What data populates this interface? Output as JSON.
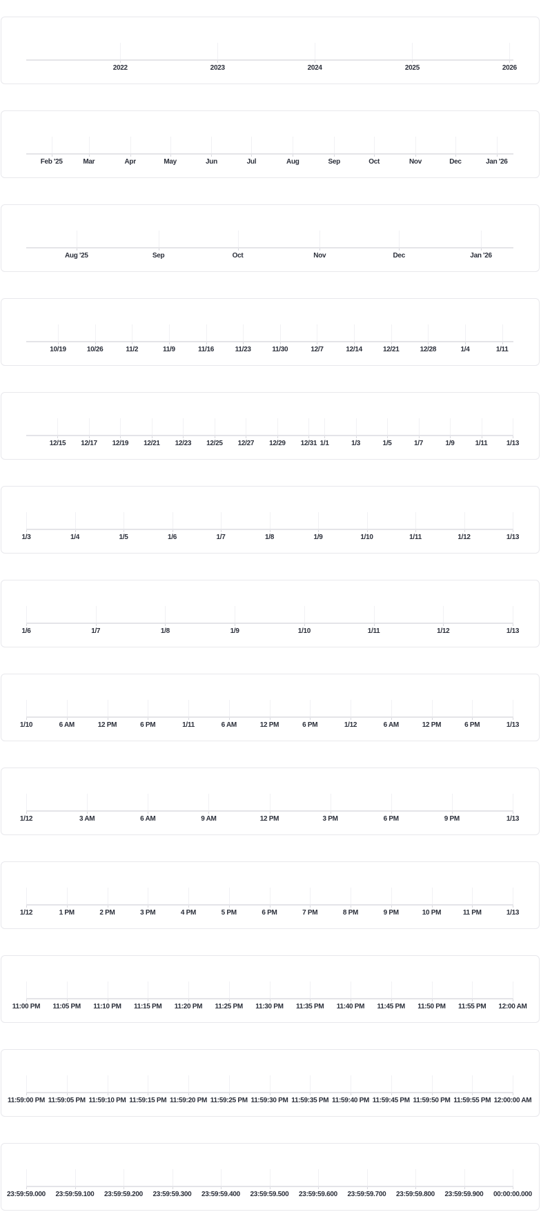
{
  "chart_data": [
    {
      "type": "timeline-axis",
      "domain": [
        "2021-01-13T00:00:00",
        "2026-01-13T00:00:00"
      ],
      "grid": true,
      "ticks": [
        {
          "t": "2022-01-01T00:00:00",
          "label": "2022"
        },
        {
          "t": "2023-01-01T00:00:00",
          "label": "2023"
        },
        {
          "t": "2024-01-01T00:00:00",
          "label": "2024"
        },
        {
          "t": "2025-01-01T00:00:00",
          "label": "2025"
        },
        {
          "t": "2026-01-01T00:00:00",
          "label": "2026"
        }
      ]
    },
    {
      "type": "timeline-axis",
      "domain": [
        "2025-01-13T00:00:00",
        "2026-01-13T00:00:00"
      ],
      "grid": true,
      "ticks": [
        {
          "t": "2025-02-01T00:00:00",
          "label": "Feb '25"
        },
        {
          "t": "2025-03-01T00:00:00",
          "label": "Mar"
        },
        {
          "t": "2025-04-01T00:00:00",
          "label": "Apr"
        },
        {
          "t": "2025-05-01T00:00:00",
          "label": "May"
        },
        {
          "t": "2025-06-01T00:00:00",
          "label": "Jun"
        },
        {
          "t": "2025-07-01T00:00:00",
          "label": "Jul"
        },
        {
          "t": "2025-08-01T00:00:00",
          "label": "Aug"
        },
        {
          "t": "2025-09-01T00:00:00",
          "label": "Sep"
        },
        {
          "t": "2025-10-01T00:00:00",
          "label": "Oct"
        },
        {
          "t": "2025-11-01T00:00:00",
          "label": "Nov"
        },
        {
          "t": "2025-12-01T00:00:00",
          "label": "Dec"
        },
        {
          "t": "2026-01-01T00:00:00",
          "label": "Jan '26"
        }
      ]
    },
    {
      "type": "timeline-axis",
      "domain": [
        "2025-07-13T00:00:00",
        "2026-01-13T00:00:00"
      ],
      "grid": true,
      "ticks": [
        {
          "t": "2025-08-01T00:00:00",
          "label": "Aug '25"
        },
        {
          "t": "2025-09-01T00:00:00",
          "label": "Sep"
        },
        {
          "t": "2025-10-01T00:00:00",
          "label": "Oct"
        },
        {
          "t": "2025-11-01T00:00:00",
          "label": "Nov"
        },
        {
          "t": "2025-12-01T00:00:00",
          "label": "Dec"
        },
        {
          "t": "2026-01-01T00:00:00",
          "label": "Jan '26"
        }
      ]
    },
    {
      "type": "timeline-axis",
      "domain": [
        "2025-10-13T00:00:00",
        "2026-01-13T00:00:00"
      ],
      "grid": true,
      "ticks": [
        {
          "t": "2025-10-19T00:00:00",
          "label": "10/19"
        },
        {
          "t": "2025-10-26T00:00:00",
          "label": "10/26"
        },
        {
          "t": "2025-11-02T00:00:00",
          "label": "11/2"
        },
        {
          "t": "2025-11-09T00:00:00",
          "label": "11/9"
        },
        {
          "t": "2025-11-16T00:00:00",
          "label": "11/16"
        },
        {
          "t": "2025-11-23T00:00:00",
          "label": "11/23"
        },
        {
          "t": "2025-11-30T00:00:00",
          "label": "11/30"
        },
        {
          "t": "2025-12-07T00:00:00",
          "label": "12/7"
        },
        {
          "t": "2025-12-14T00:00:00",
          "label": "12/14"
        },
        {
          "t": "2025-12-21T00:00:00",
          "label": "12/21"
        },
        {
          "t": "2025-12-28T00:00:00",
          "label": "12/28"
        },
        {
          "t": "2026-01-04T00:00:00",
          "label": "1/4"
        },
        {
          "t": "2026-01-11T00:00:00",
          "label": "1/11"
        }
      ]
    },
    {
      "type": "timeline-axis",
      "domain": [
        "2025-12-13T00:00:00",
        "2026-01-13T00:00:00"
      ],
      "grid": true,
      "ticks": [
        {
          "t": "2025-12-15T00:00:00",
          "label": "12/15"
        },
        {
          "t": "2025-12-17T00:00:00",
          "label": "12/17"
        },
        {
          "t": "2025-12-19T00:00:00",
          "label": "12/19"
        },
        {
          "t": "2025-12-21T00:00:00",
          "label": "12/21"
        },
        {
          "t": "2025-12-23T00:00:00",
          "label": "12/23"
        },
        {
          "t": "2025-12-25T00:00:00",
          "label": "12/25"
        },
        {
          "t": "2025-12-27T00:00:00",
          "label": "12/27"
        },
        {
          "t": "2025-12-29T00:00:00",
          "label": "12/29"
        },
        {
          "t": "2025-12-31T00:00:00",
          "label": "12/31"
        },
        {
          "t": "2026-01-01T00:00:00",
          "label": "1/1"
        },
        {
          "t": "2026-01-03T00:00:00",
          "label": "1/3"
        },
        {
          "t": "2026-01-05T00:00:00",
          "label": "1/5"
        },
        {
          "t": "2026-01-07T00:00:00",
          "label": "1/7"
        },
        {
          "t": "2026-01-09T00:00:00",
          "label": "1/9"
        },
        {
          "t": "2026-01-11T00:00:00",
          "label": "1/11"
        },
        {
          "t": "2026-01-13T00:00:00",
          "label": "1/13"
        }
      ]
    },
    {
      "type": "timeline-axis",
      "domain": [
        "2026-01-03T00:00:00",
        "2026-01-13T00:00:00"
      ],
      "grid": true,
      "ticks": [
        {
          "t": "2026-01-03T00:00:00",
          "label": "1/3"
        },
        {
          "t": "2026-01-04T00:00:00",
          "label": "1/4"
        },
        {
          "t": "2026-01-05T00:00:00",
          "label": "1/5"
        },
        {
          "t": "2026-01-06T00:00:00",
          "label": "1/6"
        },
        {
          "t": "2026-01-07T00:00:00",
          "label": "1/7"
        },
        {
          "t": "2026-01-08T00:00:00",
          "label": "1/8"
        },
        {
          "t": "2026-01-09T00:00:00",
          "label": "1/9"
        },
        {
          "t": "2026-01-10T00:00:00",
          "label": "1/10"
        },
        {
          "t": "2026-01-11T00:00:00",
          "label": "1/11"
        },
        {
          "t": "2026-01-12T00:00:00",
          "label": "1/12"
        },
        {
          "t": "2026-01-13T00:00:00",
          "label": "1/13"
        }
      ]
    },
    {
      "type": "timeline-axis",
      "domain": [
        "2026-01-06T00:00:00",
        "2026-01-13T00:00:00"
      ],
      "grid": true,
      "ticks": [
        {
          "t": "2026-01-06T00:00:00",
          "label": "1/6"
        },
        {
          "t": "2026-01-07T00:00:00",
          "label": "1/7"
        },
        {
          "t": "2026-01-08T00:00:00",
          "label": "1/8"
        },
        {
          "t": "2026-01-09T00:00:00",
          "label": "1/9"
        },
        {
          "t": "2026-01-10T00:00:00",
          "label": "1/10"
        },
        {
          "t": "2026-01-11T00:00:00",
          "label": "1/11"
        },
        {
          "t": "2026-01-12T00:00:00",
          "label": "1/12"
        },
        {
          "t": "2026-01-13T00:00:00",
          "label": "1/13"
        }
      ]
    },
    {
      "type": "timeline-axis",
      "domain": [
        "2026-01-10T00:00:00",
        "2026-01-13T00:00:00"
      ],
      "grid": true,
      "ticks": [
        {
          "t": "2026-01-10T00:00:00",
          "label": "1/10"
        },
        {
          "t": "2026-01-10T06:00:00",
          "label": "6 AM"
        },
        {
          "t": "2026-01-10T12:00:00",
          "label": "12 PM"
        },
        {
          "t": "2026-01-10T18:00:00",
          "label": "6 PM"
        },
        {
          "t": "2026-01-11T00:00:00",
          "label": "1/11"
        },
        {
          "t": "2026-01-11T06:00:00",
          "label": "6 AM"
        },
        {
          "t": "2026-01-11T12:00:00",
          "label": "12 PM"
        },
        {
          "t": "2026-01-11T18:00:00",
          "label": "6 PM"
        },
        {
          "t": "2026-01-12T00:00:00",
          "label": "1/12"
        },
        {
          "t": "2026-01-12T06:00:00",
          "label": "6 AM"
        },
        {
          "t": "2026-01-12T12:00:00",
          "label": "12 PM"
        },
        {
          "t": "2026-01-12T18:00:00",
          "label": "6 PM"
        },
        {
          "t": "2026-01-13T00:00:00",
          "label": "1/13"
        }
      ]
    },
    {
      "type": "timeline-axis",
      "domain": [
        "2026-01-12T00:00:00",
        "2026-01-13T00:00:00"
      ],
      "grid": true,
      "ticks": [
        {
          "t": "2026-01-12T00:00:00",
          "label": "1/12"
        },
        {
          "t": "2026-01-12T03:00:00",
          "label": "3 AM"
        },
        {
          "t": "2026-01-12T06:00:00",
          "label": "6 AM"
        },
        {
          "t": "2026-01-12T09:00:00",
          "label": "9 AM"
        },
        {
          "t": "2026-01-12T12:00:00",
          "label": "12 PM"
        },
        {
          "t": "2026-01-12T15:00:00",
          "label": "3 PM"
        },
        {
          "t": "2026-01-12T18:00:00",
          "label": "6 PM"
        },
        {
          "t": "2026-01-12T21:00:00",
          "label": "9 PM"
        },
        {
          "t": "2026-01-13T00:00:00",
          "label": "1/13"
        }
      ]
    },
    {
      "type": "timeline-axis",
      "domain": [
        "2026-01-12T12:00:00",
        "2026-01-13T00:00:00"
      ],
      "grid": true,
      "ticks": [
        {
          "t": "2026-01-12T12:00:00",
          "label": "1/12"
        },
        {
          "t": "2026-01-12T13:00:00",
          "label": "1 PM"
        },
        {
          "t": "2026-01-12T14:00:00",
          "label": "2 PM"
        },
        {
          "t": "2026-01-12T15:00:00",
          "label": "3 PM"
        },
        {
          "t": "2026-01-12T16:00:00",
          "label": "4 PM"
        },
        {
          "t": "2026-01-12T17:00:00",
          "label": "5 PM"
        },
        {
          "t": "2026-01-12T18:00:00",
          "label": "6 PM"
        },
        {
          "t": "2026-01-12T19:00:00",
          "label": "7 PM"
        },
        {
          "t": "2026-01-12T20:00:00",
          "label": "8 PM"
        },
        {
          "t": "2026-01-12T21:00:00",
          "label": "9 PM"
        },
        {
          "t": "2026-01-12T22:00:00",
          "label": "10 PM"
        },
        {
          "t": "2026-01-12T23:00:00",
          "label": "11 PM"
        },
        {
          "t": "2026-01-13T00:00:00",
          "label": "1/13"
        }
      ]
    },
    {
      "type": "timeline-axis",
      "domain": [
        "2026-01-12T23:00:00",
        "2026-01-13T00:00:00"
      ],
      "grid": true,
      "ticks": [
        {
          "t": "2026-01-12T23:00:00",
          "label": "11:00 PM"
        },
        {
          "t": "2026-01-12T23:05:00",
          "label": "11:05 PM"
        },
        {
          "t": "2026-01-12T23:10:00",
          "label": "11:10 PM"
        },
        {
          "t": "2026-01-12T23:15:00",
          "label": "11:15 PM"
        },
        {
          "t": "2026-01-12T23:20:00",
          "label": "11:20 PM"
        },
        {
          "t": "2026-01-12T23:25:00",
          "label": "11:25 PM"
        },
        {
          "t": "2026-01-12T23:30:00",
          "label": "11:30 PM"
        },
        {
          "t": "2026-01-12T23:35:00",
          "label": "11:35 PM"
        },
        {
          "t": "2026-01-12T23:40:00",
          "label": "11:40 PM"
        },
        {
          "t": "2026-01-12T23:45:00",
          "label": "11:45 PM"
        },
        {
          "t": "2026-01-12T23:50:00",
          "label": "11:50 PM"
        },
        {
          "t": "2026-01-12T23:55:00",
          "label": "11:55 PM"
        },
        {
          "t": "2026-01-13T00:00:00",
          "label": "12:00 AM"
        }
      ]
    },
    {
      "type": "timeline-axis",
      "domain": [
        "2026-01-12T23:59:00",
        "2026-01-13T00:00:00"
      ],
      "grid": true,
      "ticks": [
        {
          "t": "2026-01-12T23:59:00",
          "label": "11:59:00 PM"
        },
        {
          "t": "2026-01-12T23:59:05",
          "label": "11:59:05 PM"
        },
        {
          "t": "2026-01-12T23:59:10",
          "label": "11:59:10 PM"
        },
        {
          "t": "2026-01-12T23:59:15",
          "label": "11:59:15 PM"
        },
        {
          "t": "2026-01-12T23:59:20",
          "label": "11:59:20 PM"
        },
        {
          "t": "2026-01-12T23:59:25",
          "label": "11:59:25 PM"
        },
        {
          "t": "2026-01-12T23:59:30",
          "label": "11:59:30 PM"
        },
        {
          "t": "2026-01-12T23:59:35",
          "label": "11:59:35 PM"
        },
        {
          "t": "2026-01-12T23:59:40",
          "label": "11:59:40 PM"
        },
        {
          "t": "2026-01-12T23:59:45",
          "label": "11:59:45 PM"
        },
        {
          "t": "2026-01-12T23:59:50",
          "label": "11:59:50 PM"
        },
        {
          "t": "2026-01-12T23:59:55",
          "label": "11:59:55 PM"
        },
        {
          "t": "2026-01-13T00:00:00",
          "label": "12:00:00 AM"
        }
      ]
    },
    {
      "type": "timeline-axis",
      "domain": [
        "2026-01-12T23:59:59.000",
        "2026-01-13T00:00:00.000"
      ],
      "grid": true,
      "ticks": [
        {
          "t": "2026-01-12T23:59:59.000",
          "label": "23:59:59.000"
        },
        {
          "t": "2026-01-12T23:59:59.100",
          "label": "23:59:59.100"
        },
        {
          "t": "2026-01-12T23:59:59.200",
          "label": "23:59:59.200"
        },
        {
          "t": "2026-01-12T23:59:59.300",
          "label": "23:59:59.300"
        },
        {
          "t": "2026-01-12T23:59:59.400",
          "label": "23:59:59.400"
        },
        {
          "t": "2026-01-12T23:59:59.500",
          "label": "23:59:59.500"
        },
        {
          "t": "2026-01-12T23:59:59.600",
          "label": "23:59:59.600"
        },
        {
          "t": "2026-01-12T23:59:59.700",
          "label": "23:59:59.700"
        },
        {
          "t": "2026-01-12T23:59:59.800",
          "label": "23:59:59.800"
        },
        {
          "t": "2026-01-12T23:59:59.900",
          "label": "23:59:59.900"
        },
        {
          "t": "2026-01-13T00:00:00.000",
          "label": "00:00:00.000"
        }
      ]
    }
  ]
}
